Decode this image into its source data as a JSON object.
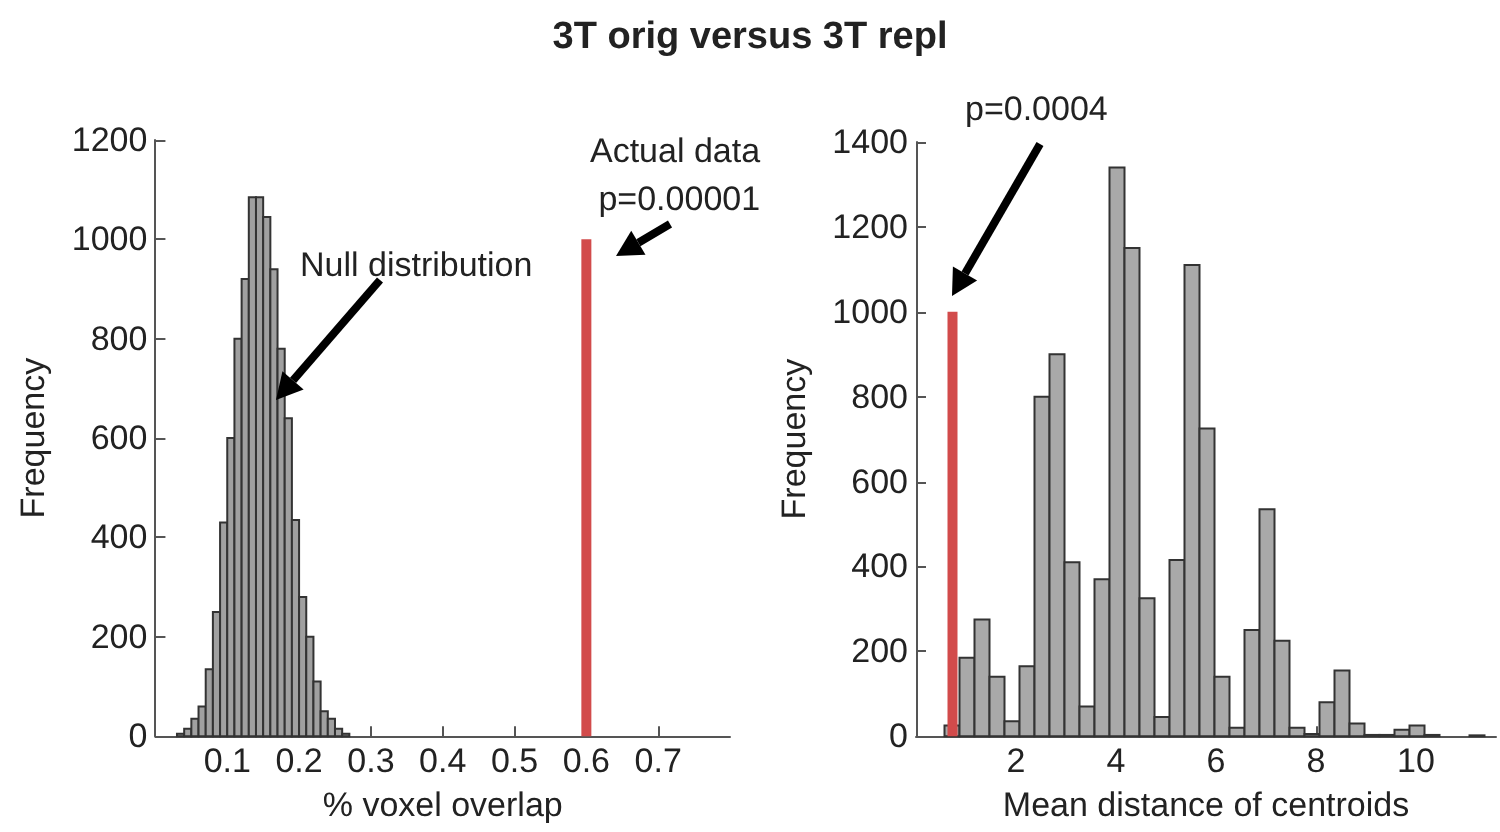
{
  "chart_data": [
    {
      "type": "histogram",
      "title": "3T orig versus 3T repl",
      "xlabel": "% voxel overlap",
      "ylabel": "Frequency",
      "xlim": [
        0,
        0.8
      ],
      "xticks": [
        0.1,
        0.2,
        0.3,
        0.4,
        0.5,
        0.6,
        0.7
      ],
      "ylim": [
        0,
        1200
      ],
      "yticks": [
        0,
        200,
        400,
        600,
        800,
        1000,
        1200
      ],
      "grid": false,
      "series": [
        {
          "type": "histogram",
          "color": "#a0a0a0",
          "bins": [
            0.03,
            0.04,
            0.05,
            0.06,
            0.07,
            0.08,
            0.09,
            0.1,
            0.11,
            0.12,
            0.13,
            0.14,
            0.15,
            0.16,
            0.17,
            0.18,
            0.19,
            0.2,
            0.21,
            0.22,
            0.23,
            0.24,
            0.25,
            0.26,
            0.27
          ],
          "values": [
            5,
            15,
            35,
            60,
            135,
            250,
            430,
            600,
            800,
            920,
            1085,
            1085,
            1045,
            940,
            780,
            640,
            435,
            280,
            200,
            110,
            50,
            35,
            15,
            5
          ]
        },
        {
          "type": "bar",
          "color": "#d24b4b",
          "x": [
            0.6
          ],
          "values": [
            1000
          ]
        }
      ],
      "annotations": [
        "Null distribution",
        "Actual data\np=0.00001"
      ]
    },
    {
      "type": "histogram",
      "xlabel": "Mean distance of centroids",
      "ylabel": "Frequency",
      "xlim": [
        0,
        11.6
      ],
      "xticks": [
        2,
        4,
        6,
        8,
        10
      ],
      "ylim": [
        0,
        1400
      ],
      "yticks": [
        0,
        200,
        400,
        600,
        800,
        1000,
        1200,
        1400
      ],
      "grid": false,
      "series": [
        {
          "type": "histogram",
          "color": "#a9a9a9",
          "bins": [
            0.57,
            0.87,
            1.17,
            1.47,
            1.77,
            2.07,
            2.37,
            2.67,
            2.97,
            3.27,
            3.57,
            3.87,
            4.17,
            4.47,
            4.77,
            5.07,
            5.37,
            5.67,
            5.97,
            6.27,
            6.57,
            6.87,
            7.17,
            7.47,
            7.77,
            8.07,
            8.37,
            8.67,
            8.97,
            9.27,
            9.57,
            9.87,
            10.17,
            10.47,
            10.77,
            11.07,
            11.37
          ],
          "values": [
            25,
            185,
            275,
            140,
            35,
            165,
            800,
            900,
            410,
            70,
            370,
            1340,
            1150,
            325,
            45,
            415,
            1110,
            725,
            140,
            20,
            250,
            535,
            225,
            20,
            5,
            80,
            155,
            30,
            3,
            3,
            15,
            25,
            3,
            0,
            0,
            2
          ]
        },
        {
          "type": "bar",
          "color": "#d24b4b",
          "x": [
            0.73
          ],
          "values": [
            1000
          ]
        }
      ],
      "annotations": [
        "p=0.0004"
      ]
    }
  ]
}
